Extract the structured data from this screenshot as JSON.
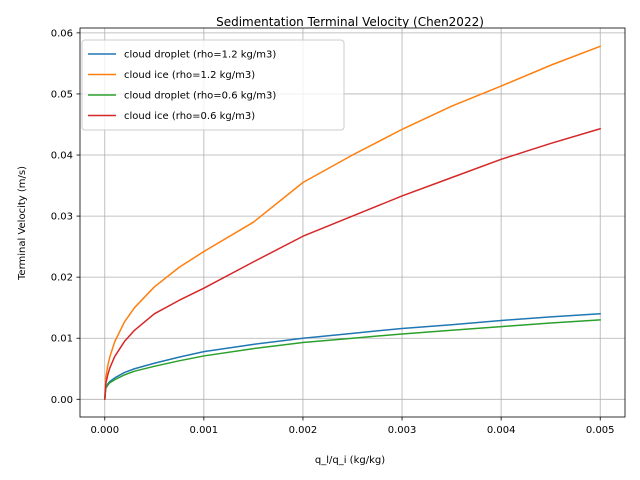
{
  "chart_data": {
    "type": "line",
    "title": "Sedimentation Terminal Velocity (Chen2022)",
    "xlabel": "q_l/q_i (kg/kg)",
    "ylabel": "Terminal Velocity (m/s)",
    "xlim": [
      -0.00025,
      0.00525
    ],
    "ylim": [
      -0.0029,
      0.0608
    ],
    "xticks": [
      0.0,
      0.001,
      0.002,
      0.003,
      0.004,
      0.005
    ],
    "xtick_labels": [
      "0.000",
      "0.001",
      "0.002",
      "0.003",
      "0.004",
      "0.005"
    ],
    "yticks": [
      0.0,
      0.01,
      0.02,
      0.03,
      0.04,
      0.05,
      0.06
    ],
    "ytick_labels": [
      "0.00",
      "0.01",
      "0.02",
      "0.03",
      "0.04",
      "0.05",
      "0.06"
    ],
    "grid": true,
    "legend_position": "top-left",
    "series": [
      {
        "name": "cloud droplet (rho=1.2 kg/m3)",
        "color": "#1f77b4",
        "x": [
          0.0,
          1e-05,
          3e-05,
          5e-05,
          0.0001,
          0.0002,
          0.0003,
          0.0005,
          0.00075,
          0.001,
          0.0015,
          0.002,
          0.0025,
          0.003,
          0.0035,
          0.004,
          0.0045,
          0.005
        ],
        "y": [
          0.0,
          0.0019,
          0.0025,
          0.0029,
          0.0035,
          0.0044,
          0.005,
          0.0059,
          0.0069,
          0.0078,
          0.009,
          0.01,
          0.0108,
          0.0116,
          0.0122,
          0.0129,
          0.0135,
          0.014
        ]
      },
      {
        "name": "cloud ice (rho=1.2 kg/m3)",
        "color": "#ff7f0e",
        "x": [
          0.0,
          1e-05,
          3e-05,
          5e-05,
          0.0001,
          0.0002,
          0.0003,
          0.0005,
          0.00075,
          0.001,
          0.0015,
          0.002,
          0.0025,
          0.003,
          0.0035,
          0.004,
          0.0045,
          0.005
        ],
        "y": [
          0.0,
          0.0035,
          0.0055,
          0.0069,
          0.0094,
          0.0127,
          0.015,
          0.0184,
          0.0216,
          0.0242,
          0.029,
          0.0355,
          0.04,
          0.0442,
          0.048,
          0.0513,
          0.0547,
          0.0578
        ]
      },
      {
        "name": "cloud droplet (rho=0.6 kg/m3)",
        "color": "#2ca02c",
        "x": [
          0.0,
          1e-05,
          3e-05,
          5e-05,
          0.0001,
          0.0002,
          0.0003,
          0.0005,
          0.00075,
          0.001,
          0.0015,
          0.002,
          0.0025,
          0.003,
          0.0035,
          0.004,
          0.0045,
          0.005
        ],
        "y": [
          0.0,
          0.0018,
          0.0023,
          0.0027,
          0.0032,
          0.004,
          0.0046,
          0.0054,
          0.0063,
          0.0071,
          0.0083,
          0.0093,
          0.01,
          0.0107,
          0.0113,
          0.0119,
          0.0125,
          0.013
        ]
      },
      {
        "name": "cloud ice (rho=0.6 kg/m3)",
        "color": "#d62728",
        "x": [
          0.0,
          1e-05,
          3e-05,
          5e-05,
          0.0001,
          0.0002,
          0.0003,
          0.0005,
          0.00075,
          0.001,
          0.0015,
          0.002,
          0.0025,
          0.003,
          0.0035,
          0.004,
          0.0045,
          0.005
        ],
        "y": [
          0.0,
          0.0025,
          0.004,
          0.0051,
          0.007,
          0.0095,
          0.0113,
          0.014,
          0.0162,
          0.0182,
          0.0225,
          0.0267,
          0.03,
          0.0333,
          0.0363,
          0.0393,
          0.0419,
          0.0443
        ]
      }
    ]
  }
}
